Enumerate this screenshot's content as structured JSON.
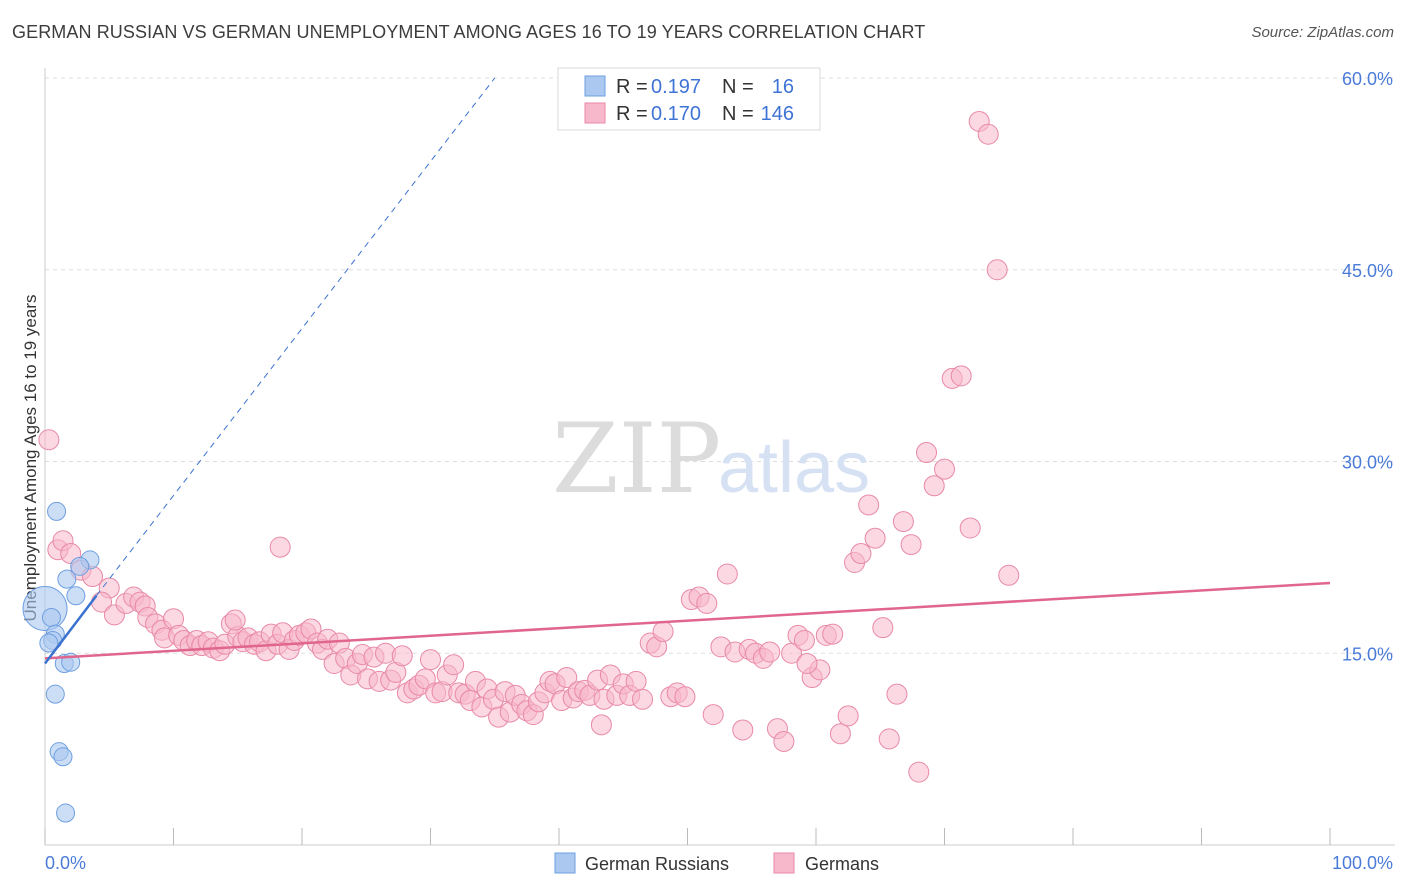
{
  "title": "GERMAN RUSSIAN VS GERMAN UNEMPLOYMENT AMONG AGES 16 TO 19 YEARS CORRELATION CHART",
  "source": "Source: ZipAtlas.com",
  "watermark": {
    "zip": "ZIP",
    "atlas": "atlas"
  },
  "colors": {
    "blue_fill": "#aac8f0",
    "blue_stroke": "#6e9fe0",
    "blue_line": "#3a72d0",
    "pink_fill": "#f7b8cb",
    "pink_stroke": "#e889a8",
    "pink_line": "#e0668e",
    "grid": "#dddddd",
    "axis_text": "#4b7bd8"
  },
  "legend_top": [
    {
      "r_label": "R =",
      "r_value": "0.197",
      "n_label": "N =",
      "n_value": "16"
    },
    {
      "r_label": "R =",
      "r_value": "0.170",
      "n_label": "N =",
      "n_value": "146"
    }
  ],
  "legend_bottom": [
    "German Russians",
    "Germans"
  ],
  "chart_data": {
    "type": "scatter",
    "title": "GERMAN RUSSIAN VS GERMAN UNEMPLOYMENT AMONG AGES 16 TO 19 YEARS CORRELATION CHART",
    "xlabel": "",
    "ylabel": "Unemployment Among Ages 16 to 19 years",
    "xlim": [
      0,
      100
    ],
    "ylim": [
      0,
      60
    ],
    "x_tick_labels": [
      "0.0%",
      "100.0%"
    ],
    "y_ticks": [
      15,
      30,
      45,
      60
    ],
    "y_tick_labels": [
      "15.0%",
      "30.0%",
      "45.0%",
      "60.0%"
    ],
    "grid": true,
    "legend_position": "top-center",
    "series": [
      {
        "name": "German Russians",
        "r": 0.197,
        "n": 16,
        "trend": {
          "x": [
            0,
            4
          ],
          "y": [
            14.2,
            19.5
          ]
        },
        "trend_extended": {
          "x": [
            4,
            35
          ],
          "y": [
            19.5,
            60
          ]
        },
        "points": [
          [
            0,
            18.5,
            22
          ],
          [
            0.5,
            17.8,
            9
          ],
          [
            0.8,
            16.5,
            9
          ],
          [
            0.6,
            16.0,
            9
          ],
          [
            1.5,
            14.2,
            9
          ],
          [
            2.0,
            14.3,
            9
          ],
          [
            1.7,
            20.8,
            9
          ],
          [
            2.4,
            19.5,
            9
          ],
          [
            3.5,
            22.3,
            9
          ],
          [
            2.7,
            21.8,
            9
          ],
          [
            0.9,
            26.1,
            9
          ],
          [
            0.8,
            11.8,
            9
          ],
          [
            1.1,
            7.3,
            9
          ],
          [
            1.4,
            6.9,
            9
          ],
          [
            1.6,
            2.5,
            9
          ],
          [
            0.3,
            15.8,
            9
          ]
        ]
      },
      {
        "name": "Germans",
        "r": 0.17,
        "n": 146,
        "trend": {
          "x": [
            0,
            100
          ],
          "y": [
            14.6,
            20.5
          ]
        },
        "points": [
          [
            0.3,
            31.7,
            10
          ],
          [
            1.0,
            23.1,
            10
          ],
          [
            1.4,
            23.8,
            10
          ],
          [
            2.0,
            22.8,
            10
          ],
          [
            2.8,
            21.5,
            10
          ],
          [
            3.7,
            21.0,
            10
          ],
          [
            5.0,
            20.1,
            10
          ],
          [
            4.4,
            19.0,
            10
          ],
          [
            5.4,
            18.0,
            10
          ],
          [
            6.3,
            18.9,
            10
          ],
          [
            6.9,
            19.4,
            10
          ],
          [
            7.4,
            19.0,
            10
          ],
          [
            7.8,
            18.7,
            10
          ],
          [
            8.0,
            17.8,
            10
          ],
          [
            8.6,
            17.3,
            10
          ],
          [
            9.1,
            16.8,
            10
          ],
          [
            9.3,
            16.2,
            10
          ],
          [
            10.0,
            17.7,
            10
          ],
          [
            10.4,
            16.4,
            10
          ],
          [
            10.8,
            16.0,
            10
          ],
          [
            11.3,
            15.6,
            10
          ],
          [
            11.8,
            16.0,
            10
          ],
          [
            12.2,
            15.6,
            10
          ],
          [
            12.7,
            15.9,
            10
          ],
          [
            13.1,
            15.4,
            10
          ],
          [
            13.6,
            15.2,
            10
          ],
          [
            14.0,
            15.7,
            10
          ],
          [
            14.5,
            17.3,
            10
          ],
          [
            15.0,
            16.3,
            10
          ],
          [
            15.4,
            15.9,
            10
          ],
          [
            15.8,
            16.2,
            10
          ],
          [
            16.3,
            15.7,
            10
          ],
          [
            16.7,
            15.9,
            10
          ],
          [
            17.2,
            15.2,
            10
          ],
          [
            17.6,
            16.5,
            10
          ],
          [
            18.1,
            15.7,
            10
          ],
          [
            18.5,
            16.6,
            10
          ],
          [
            19.0,
            15.3,
            10
          ],
          [
            19.4,
            16.0,
            10
          ],
          [
            19.8,
            16.4,
            10
          ],
          [
            20.3,
            16.6,
            10
          ],
          [
            20.7,
            16.9,
            10
          ],
          [
            21.2,
            15.8,
            10
          ],
          [
            21.6,
            15.3,
            10
          ],
          [
            22.0,
            16.1,
            10
          ],
          [
            22.5,
            14.2,
            10
          ],
          [
            22.9,
            15.8,
            10
          ],
          [
            23.4,
            14.6,
            10
          ],
          [
            23.8,
            13.3,
            10
          ],
          [
            24.3,
            14.2,
            10
          ],
          [
            24.7,
            14.9,
            10
          ],
          [
            25.1,
            13.0,
            10
          ],
          [
            25.6,
            14.7,
            10
          ],
          [
            26.0,
            12.8,
            10
          ],
          [
            26.5,
            15.0,
            10
          ],
          [
            26.9,
            12.9,
            10
          ],
          [
            27.3,
            13.5,
            10
          ],
          [
            27.8,
            14.8,
            10
          ],
          [
            28.2,
            11.9,
            10
          ],
          [
            28.7,
            12.2,
            10
          ],
          [
            29.1,
            12.5,
            10
          ],
          [
            29.6,
            13.0,
            10
          ],
          [
            30.0,
            14.5,
            10
          ],
          [
            30.4,
            11.9,
            10
          ],
          [
            30.9,
            12.0,
            10
          ],
          [
            31.3,
            13.3,
            10
          ],
          [
            31.8,
            14.1,
            10
          ],
          [
            32.2,
            11.9,
            10
          ],
          [
            32.7,
            11.8,
            10
          ],
          [
            33.1,
            11.3,
            10
          ],
          [
            33.5,
            12.8,
            10
          ],
          [
            34.0,
            10.8,
            10
          ],
          [
            34.4,
            12.2,
            10
          ],
          [
            34.9,
            11.4,
            10
          ],
          [
            35.3,
            10.0,
            10
          ],
          [
            35.8,
            12.0,
            10
          ],
          [
            36.2,
            10.4,
            10
          ],
          [
            36.6,
            11.7,
            10
          ],
          [
            37.1,
            11.0,
            10
          ],
          [
            37.5,
            10.5,
            10
          ],
          [
            38.0,
            10.2,
            10
          ],
          [
            38.4,
            11.2,
            10
          ],
          [
            38.9,
            11.9,
            10
          ],
          [
            39.3,
            12.8,
            10
          ],
          [
            39.7,
            12.6,
            10
          ],
          [
            40.2,
            11.3,
            10
          ],
          [
            40.6,
            13.1,
            10
          ],
          [
            41.1,
            11.5,
            10
          ],
          [
            41.5,
            12.0,
            10
          ],
          [
            42.0,
            12.1,
            10
          ],
          [
            42.4,
            11.7,
            10
          ],
          [
            43.0,
            12.9,
            10
          ],
          [
            43.5,
            11.4,
            10
          ],
          [
            44.0,
            13.3,
            10
          ],
          [
            44.5,
            11.7,
            10
          ],
          [
            45.0,
            12.6,
            10
          ],
          [
            45.5,
            11.7,
            10
          ],
          [
            46.0,
            12.8,
            10
          ],
          [
            46.5,
            11.4,
            10
          ],
          [
            47.1,
            15.8,
            10
          ],
          [
            47.6,
            15.5,
            10
          ],
          [
            48.1,
            16.7,
            10
          ],
          [
            48.7,
            11.6,
            10
          ],
          [
            49.2,
            11.9,
            10
          ],
          [
            49.8,
            11.6,
            10
          ],
          [
            50.3,
            19.2,
            10
          ],
          [
            50.9,
            19.4,
            10
          ],
          [
            51.5,
            18.9,
            10
          ],
          [
            52.0,
            10.2,
            10
          ],
          [
            52.6,
            15.5,
            10
          ],
          [
            53.1,
            21.2,
            10
          ],
          [
            53.7,
            15.1,
            10
          ],
          [
            54.3,
            9.0,
            10
          ],
          [
            54.8,
            15.3,
            10
          ],
          [
            55.3,
            15.0,
            10
          ],
          [
            55.9,
            14.6,
            10
          ],
          [
            56.4,
            15.1,
            10
          ],
          [
            57.0,
            9.1,
            10
          ],
          [
            57.5,
            8.1,
            10
          ],
          [
            58.1,
            15.0,
            10
          ],
          [
            58.6,
            16.4,
            10
          ],
          [
            59.1,
            16.0,
            10
          ],
          [
            59.7,
            13.1,
            10
          ],
          [
            60.3,
            13.7,
            10
          ],
          [
            60.8,
            16.4,
            10
          ],
          [
            61.3,
            16.5,
            10
          ],
          [
            61.9,
            8.7,
            10
          ],
          [
            62.5,
            10.1,
            10
          ],
          [
            63.0,
            22.1,
            10
          ],
          [
            63.5,
            22.8,
            10
          ],
          [
            64.1,
            26.6,
            10
          ],
          [
            64.6,
            24.0,
            10
          ],
          [
            65.2,
            17.0,
            10
          ],
          [
            65.7,
            8.3,
            10
          ],
          [
            66.3,
            11.8,
            10
          ],
          [
            66.8,
            25.3,
            10
          ],
          [
            67.4,
            23.5,
            10
          ],
          [
            68.0,
            5.7,
            10
          ],
          [
            68.6,
            30.7,
            10
          ],
          [
            69.2,
            28.1,
            10
          ],
          [
            70.0,
            29.4,
            10
          ],
          [
            70.6,
            36.5,
            10
          ],
          [
            71.3,
            36.7,
            10
          ],
          [
            72.0,
            24.8,
            10
          ],
          [
            72.7,
            56.6,
            10
          ],
          [
            73.4,
            55.6,
            10
          ],
          [
            74.1,
            45.0,
            10
          ],
          [
            75.0,
            21.1,
            10
          ],
          [
            59.3,
            14.2,
            10
          ],
          [
            43.3,
            9.4,
            10
          ],
          [
            18.3,
            23.3,
            10
          ],
          [
            14.8,
            17.6,
            10
          ]
        ]
      }
    ]
  }
}
